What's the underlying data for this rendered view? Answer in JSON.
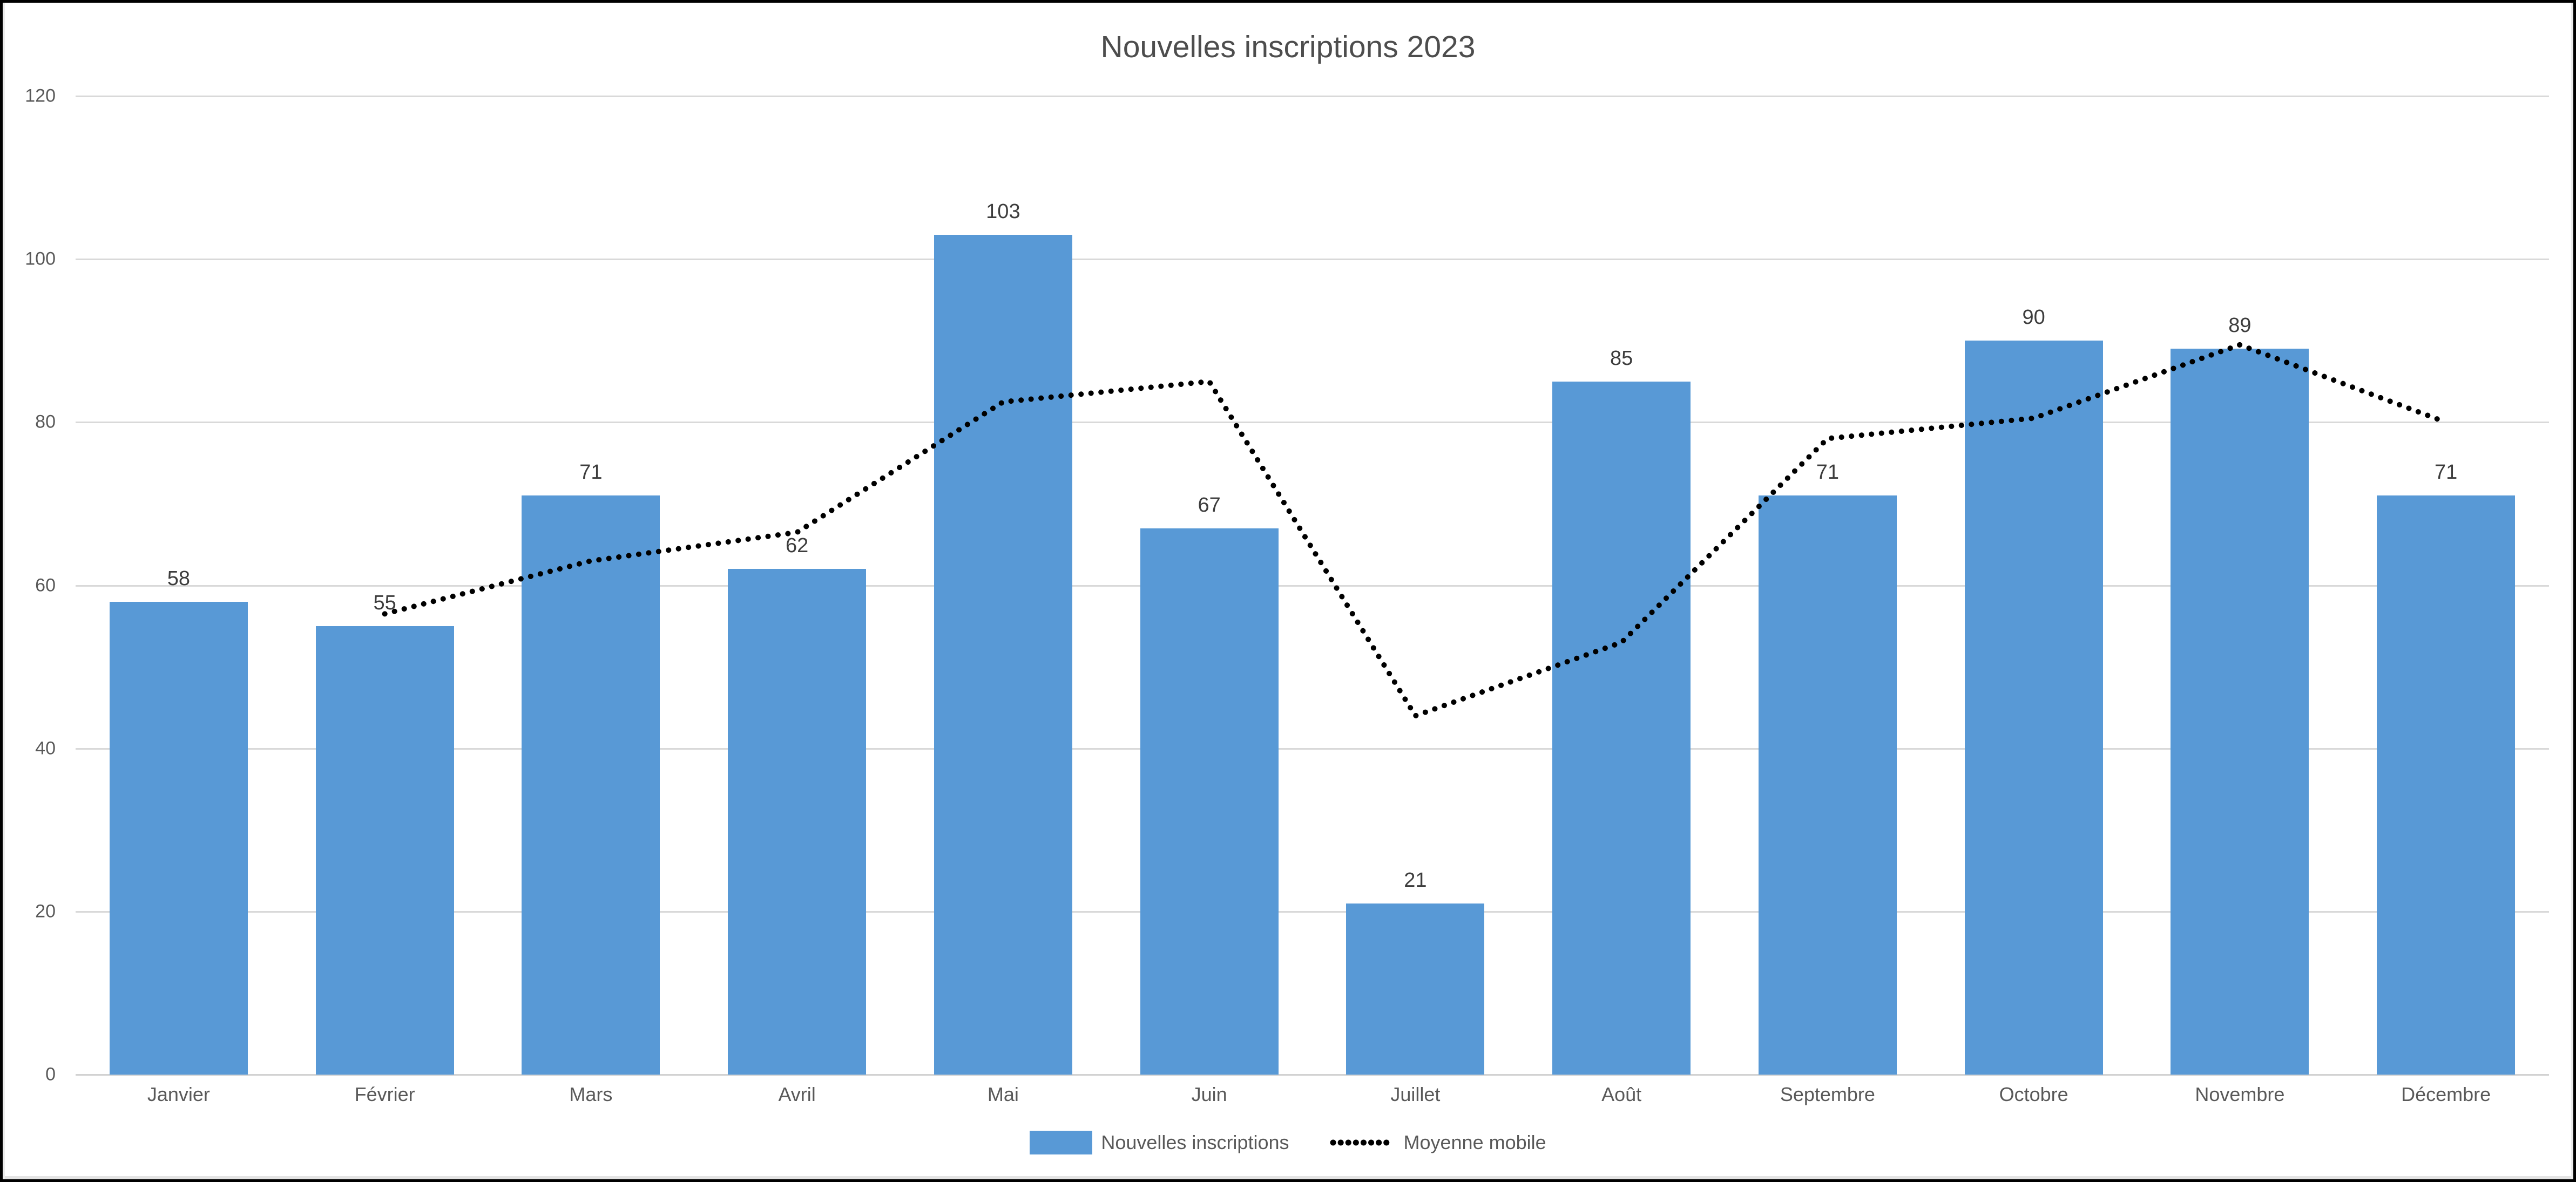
{
  "title": "Nouvelles inscriptions 2023",
  "colors": {
    "bar": "#5899d6",
    "moving_average_line": "#000000",
    "gridline": "#d9d9d9",
    "axis_line": "#d2d2d2",
    "axis_text": "#595959",
    "data_label_text": "#3d3d3d",
    "title_text": "#4d4d4d",
    "frame_border": "#000000",
    "background": "#ffffff"
  },
  "chart_data": {
    "type": "bar",
    "title": "Nouvelles inscriptions 2023",
    "categories": [
      "Janvier",
      "Février",
      "Mars",
      "Avril",
      "Mai",
      "Juin",
      "Juillet",
      "Août",
      "Septembre",
      "Octobre",
      "Novembre",
      "Décembre"
    ],
    "series": [
      {
        "name": "Nouvelles inscriptions",
        "type": "bar",
        "color": "#5899d6",
        "values": [
          58,
          55,
          71,
          62,
          103,
          67,
          21,
          85,
          71,
          90,
          89,
          71
        ],
        "data_labels": [
          58,
          55,
          71,
          62,
          103,
          67,
          21,
          85,
          71,
          90,
          89,
          71
        ]
      },
      {
        "name": "Moyenne mobile",
        "type": "line",
        "line_style": "dotted",
        "color": "#000000",
        "values": [
          null,
          56.5,
          63,
          66.5,
          82.5,
          85,
          44,
          53,
          78,
          80.5,
          89.5,
          80
        ]
      }
    ],
    "xlabel": "",
    "ylabel": "",
    "ylim": [
      0,
      120
    ],
    "yticks": [
      0,
      20,
      40,
      60,
      80,
      100,
      120
    ],
    "grid": true,
    "legend_position": "bottom"
  },
  "legend": {
    "items": [
      {
        "label": "Nouvelles inscriptions",
        "marker": "bar-swatch"
      },
      {
        "label": "Moyenne mobile",
        "marker": "dotted-line"
      }
    ]
  }
}
